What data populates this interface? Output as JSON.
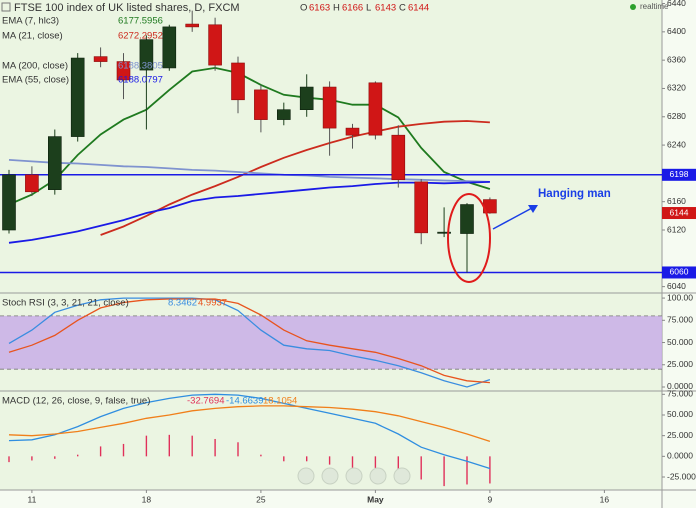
{
  "chart_data": [
    {
      "type": "candlestick",
      "title": "FTSE 100 index of UK listed shares, D, FXCM",
      "ohlc": [
        {
          "label": "O",
          "value": "6163"
        },
        {
          "label": "H",
          "value": "6166"
        },
        {
          "label": "L",
          "value": "6143"
        },
        {
          "label": "C",
          "value": "6144"
        }
      ],
      "status": "realtime",
      "categories": [
        null,
        "11",
        null,
        null,
        null,
        null,
        "18",
        null,
        null,
        null,
        null,
        "25",
        null,
        null,
        null,
        null,
        "May",
        null,
        null,
        null,
        null,
        "9",
        null,
        null,
        null,
        null,
        "16",
        null,
        null
      ],
      "open": [
        6120,
        6198,
        6177,
        6252,
        6365,
        6358,
        6346,
        6349,
        6411,
        6410,
        6356,
        6318,
        6276,
        6290,
        6322,
        6264,
        6328,
        6254,
        6188,
        6116,
        6115,
        6163,
        null,
        null,
        null,
        null,
        null,
        null,
        null
      ],
      "high": [
        6205,
        6210,
        6262,
        6370,
        6378,
        6370,
        6395,
        6410,
        6430,
        6420,
        6365,
        6325,
        6300,
        6340,
        6330,
        6270,
        6330,
        6268,
        6192,
        6152,
        6158,
        6166,
        null,
        null,
        null,
        null,
        null,
        null,
        null
      ],
      "low": [
        6115,
        6168,
        6170,
        6245,
        6350,
        6305,
        6262,
        6345,
        6400,
        6345,
        6285,
        6258,
        6268,
        6280,
        6225,
        6235,
        6248,
        6180,
        6100,
        6110,
        6060,
        6143,
        null,
        null,
        null,
        null,
        null,
        null,
        null
      ],
      "close": [
        6198,
        6174,
        6252,
        6363,
        6358,
        6332,
        6389,
        6407,
        6407,
        6353,
        6304,
        6276,
        6290,
        6322,
        6264,
        6254,
        6254,
        6191,
        6116,
        6117,
        6156,
        6144,
        null,
        null,
        null,
        null,
        null,
        null,
        null
      ],
      "up_color": "#1c3f1c",
      "down_color": "#d01616",
      "series": [
        {
          "name": "EMA (7, hlc3)",
          "legend_value": "6177.5956",
          "color": "#1f7a1f",
          "values": [
            6156,
            6170,
            6191,
            6226,
            6255,
            6276,
            6290,
            6318,
            6344,
            6349,
            6342,
            6325,
            6311,
            6307,
            6304,
            6297,
            6297,
            6279,
            6236,
            6202,
            6188,
            6178,
            null,
            null,
            null,
            null,
            null,
            null,
            null
          ]
        },
        {
          "name": "MA (21, close)",
          "legend_value": "6272.2952",
          "color": "#cc2b1e",
          "values": [
            null,
            null,
            null,
            null,
            6113,
            6125,
            6140,
            6156,
            6170,
            6182,
            6195,
            6209,
            6222,
            6233,
            6243,
            6252,
            6259,
            6266,
            6270,
            6273,
            6274,
            6272,
            null,
            null,
            null,
            null,
            null,
            null,
            null
          ]
        },
        {
          "name": "MA (200, close)",
          "legend_value": "6188.3805",
          "color": "#7f93cf",
          "values": [
            6219,
            6217,
            6215,
            6214,
            6212,
            6210,
            6209,
            6207,
            6205,
            6204,
            6202,
            6200,
            6198,
            6197,
            6195,
            6194,
            6193,
            6192,
            6191,
            6190,
            6189,
            6188,
            null,
            null,
            null,
            null,
            null,
            null,
            null
          ]
        },
        {
          "name": "EMA (55, close)",
          "legend_value": "6188.0797",
          "color": "#1a1ae6",
          "values": [
            6102,
            6106,
            6112,
            6118,
            6126,
            6134,
            6144,
            6151,
            6161,
            6166,
            6168,
            6171,
            6174,
            6177,
            6180,
            6182,
            6185,
            6187,
            6187,
            6186,
            6187,
            6188,
            null,
            null,
            null,
            null,
            null,
            null,
            null
          ]
        }
      ],
      "hlines": [
        {
          "value": 6198,
          "color": "#1a1ae6"
        },
        {
          "value": 6060,
          "color": "#1a1ae6"
        }
      ],
      "annotation": "Hanging man",
      "ylim": [
        6031,
        6445
      ],
      "yticks": [
        6040,
        6120,
        6160,
        6240,
        6280,
        6320,
        6360,
        6400,
        6440
      ]
    },
    {
      "type": "line",
      "title": "Stoch RSI (3, 3, 21, 21, close)",
      "band": [
        20,
        80
      ],
      "band_color": "#c9aee8",
      "series": [
        {
          "legend_value": "8.3462",
          "color": "#3a8de0",
          "values": [
            49,
            64,
            84,
            92,
            98,
            100,
            100,
            100,
            100,
            98,
            86,
            64,
            47,
            43,
            41,
            35,
            30,
            24,
            16,
            7,
            0,
            8.3,
            null,
            null,
            null,
            null,
            null,
            null,
            null
          ]
        },
        {
          "legend_value": "4.9937",
          "color": "#e8541e",
          "values": [
            39,
            47,
            58,
            75,
            89,
            95,
            98,
            99,
            99,
            99,
            94,
            81,
            64,
            52,
            47,
            43,
            39,
            32,
            24,
            13,
            7,
            5,
            null,
            null,
            null,
            null,
            null,
            null,
            null
          ]
        }
      ],
      "ylim": [
        -4.5,
        105.7
      ],
      "yticks": [
        {
          "value": 100,
          "label": "100.00"
        },
        {
          "value": 75,
          "label": "75.000"
        },
        {
          "value": 50,
          "label": "50.000"
        },
        {
          "value": 25,
          "label": "25.000"
        },
        {
          "value": 0,
          "label": "0.0000"
        }
      ]
    },
    {
      "type": "macd",
      "title": "MACD (12, 26, close, 9, false, true)",
      "series": [
        {
          "style": "histogram",
          "legend_value": "-32.7694",
          "color": "#e0305a",
          "values": [
            -7,
            -5,
            -3,
            2,
            12,
            15,
            25,
            26,
            25,
            21,
            17,
            2,
            -6,
            -6,
            -10,
            -14,
            -14,
            -16,
            -28,
            -36,
            -34,
            -32.8,
            null,
            null,
            null,
            null,
            null,
            null,
            null
          ]
        },
        {
          "style": "line",
          "legend_value": "-14.6639",
          "color": "#2f8ee0",
          "values": [
            19,
            20,
            26,
            36,
            48,
            58,
            65,
            70,
            74,
            75,
            74,
            70,
            64,
            58,
            52,
            46,
            40,
            27,
            11,
            2,
            -6,
            -14.7,
            null,
            null,
            null,
            null,
            null,
            null,
            null
          ]
        },
        {
          "style": "line",
          "legend_value": "18.1054",
          "color": "#f07f1a",
          "values": [
            26,
            25,
            27,
            30,
            35,
            40,
            46,
            50,
            55,
            58,
            60,
            61,
            61,
            60,
            59,
            57,
            54,
            49,
            42,
            35,
            27,
            18.1,
            null,
            null,
            null,
            null,
            null,
            null,
            null
          ]
        }
      ],
      "ylim": [
        -40.7,
        79
      ],
      "yticks": [
        {
          "value": 75,
          "label": "75.000"
        },
        {
          "value": 50,
          "label": "50.000"
        },
        {
          "value": 25,
          "label": "25.000"
        },
        {
          "value": 0,
          "label": "0.0000"
        },
        {
          "value": -25,
          "label": "-25.000"
        }
      ]
    }
  ]
}
